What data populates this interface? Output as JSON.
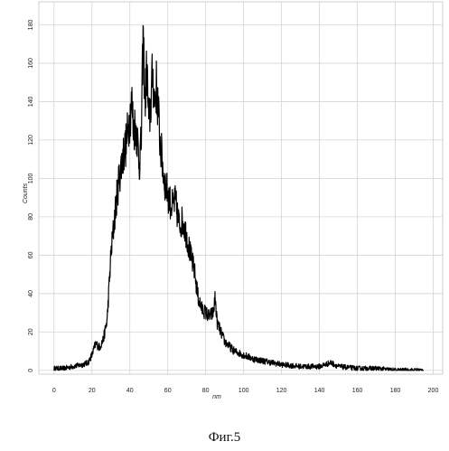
{
  "chart_data": {
    "type": "line",
    "title": "",
    "xlabel": "nm",
    "ylabel": "Counts",
    "xlim": [
      -8,
      205
    ],
    "ylim": [
      -2,
      192
    ],
    "xticks": [
      0,
      20,
      40,
      60,
      80,
      100,
      120,
      140,
      160,
      180,
      200
    ],
    "yticks": [
      0,
      20,
      40,
      60,
      80,
      100,
      120,
      140,
      160,
      180
    ],
    "grid": true,
    "legend": "none",
    "series": [
      {
        "color": "#000000",
        "x": [
          0,
          5,
          10,
          15,
          18,
          20,
          22,
          24,
          26,
          28,
          30,
          32,
          34,
          36,
          38,
          40,
          41,
          42,
          43,
          44,
          45,
          46,
          47,
          48,
          49,
          50,
          51,
          52,
          53,
          54,
          55,
          56,
          57,
          58,
          60,
          62,
          64,
          66,
          68,
          70,
          72,
          74,
          76,
          78,
          80,
          82,
          84,
          85,
          86,
          88,
          90,
          92,
          95,
          100,
          105,
          110,
          115,
          120,
          130,
          140,
          146,
          150,
          160,
          170,
          180,
          190,
          195
        ],
        "y": [
          1,
          1,
          2,
          3,
          4,
          8,
          14,
          12,
          16,
          26,
          60,
          80,
          98,
          110,
          118,
          132,
          140,
          125,
          128,
          120,
          108,
          118,
          175,
          140,
          158,
          128,
          138,
          155,
          140,
          148,
          135,
          118,
          110,
          100,
          92,
          85,
          88,
          76,
          78,
          70,
          60,
          52,
          38,
          32,
          30,
          28,
          30,
          38,
          25,
          20,
          15,
          13,
          10,
          8,
          6,
          5,
          4,
          3,
          2,
          2,
          4,
          2,
          1,
          1,
          0,
          0,
          0
        ]
      }
    ]
  },
  "caption": "Фиг.5"
}
